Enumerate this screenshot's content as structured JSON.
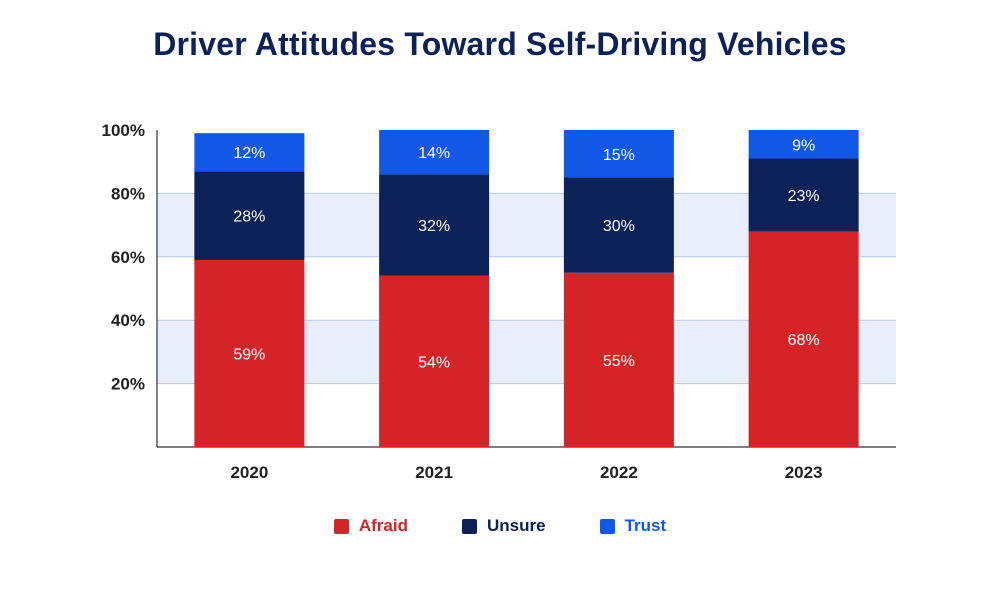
{
  "chart_data": {
    "type": "bar",
    "stacked": true,
    "title": "Driver Attitudes Toward Self-Driving Vehicles",
    "categories": [
      "2020",
      "2021",
      "2022",
      "2023"
    ],
    "series": [
      {
        "name": "Afraid",
        "values": [
          59,
          54,
          55,
          68
        ],
        "color": "#d42428"
      },
      {
        "name": "Unsure",
        "values": [
          28,
          32,
          30,
          23
        ],
        "color": "#0b2157"
      },
      {
        "name": "Trust",
        "values": [
          12,
          14,
          15,
          9
        ],
        "color": "#1158e6"
      }
    ],
    "value_suffix": "%",
    "ylim": [
      0,
      100
    ],
    "yticks": [
      20,
      40,
      60,
      80,
      100
    ],
    "ytick_labels": [
      "20%",
      "40%",
      "60%",
      "80%",
      "100%"
    ],
    "xlabel": "",
    "ylabel": "",
    "legend_position": "bottom",
    "grid": "alternating horizontal bands"
  }
}
